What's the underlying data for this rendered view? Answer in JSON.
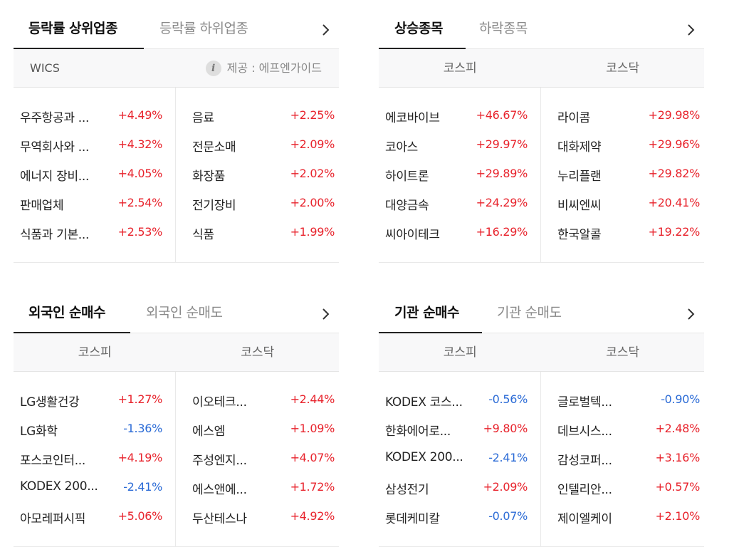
{
  "sector": {
    "tabs": [
      {
        "label": "등락률 상위업종"
      },
      {
        "label": "등락률 하위업종"
      }
    ],
    "source_label": "WICS",
    "provider": "제공 : 에프엔가이드",
    "left": [
      {
        "name": "우주항공과 ...",
        "pct": "+4.49%"
      },
      {
        "name": "무역회사와 ...",
        "pct": "+4.32%"
      },
      {
        "name": "에너지 장비...",
        "pct": "+4.05%"
      },
      {
        "name": "판매업체",
        "pct": "+2.54%"
      },
      {
        "name": "식품과 기본...",
        "pct": "+2.53%"
      }
    ],
    "right": [
      {
        "name": "음료",
        "pct": "+2.25%"
      },
      {
        "name": "전문소매",
        "pct": "+2.09%"
      },
      {
        "name": "화장품",
        "pct": "+2.02%"
      },
      {
        "name": "전기장비",
        "pct": "+2.00%"
      },
      {
        "name": "식품",
        "pct": "+1.99%"
      }
    ]
  },
  "movers": {
    "tabs": [
      {
        "label": "상승종목"
      },
      {
        "label": "하락종목"
      }
    ],
    "columns": [
      "코스피",
      "코스닥"
    ],
    "left": [
      {
        "name": "에코바이브",
        "pct": "+46.67%"
      },
      {
        "name": "코아스",
        "pct": "+29.97%"
      },
      {
        "name": "하이트론",
        "pct": "+29.89%"
      },
      {
        "name": "대양금속",
        "pct": "+24.29%"
      },
      {
        "name": "씨아이테크",
        "pct": "+16.29%"
      }
    ],
    "right": [
      {
        "name": "라이콤",
        "pct": "+29.98%"
      },
      {
        "name": "대화제약",
        "pct": "+29.96%"
      },
      {
        "name": "누리플랜",
        "pct": "+29.82%"
      },
      {
        "name": "비씨엔씨",
        "pct": "+20.41%"
      },
      {
        "name": "한국알콜",
        "pct": "+19.22%"
      }
    ]
  },
  "foreign": {
    "tabs": [
      {
        "label": "외국인 순매수"
      },
      {
        "label": "외국인 순매도"
      }
    ],
    "columns": [
      "코스피",
      "코스닥"
    ],
    "left": [
      {
        "name": "LG생활건강",
        "pct": "+1.27%"
      },
      {
        "name": "LG화학",
        "pct": "-1.36%"
      },
      {
        "name": "포스코인터...",
        "pct": "+4.19%"
      },
      {
        "name": "KODEX 200...",
        "pct": "-2.41%"
      },
      {
        "name": "아모레퍼시픽",
        "pct": "+5.06%"
      }
    ],
    "right": [
      {
        "name": "이오테크...",
        "pct": "+2.44%"
      },
      {
        "name": "에스엠",
        "pct": "+1.09%"
      },
      {
        "name": "주성엔지...",
        "pct": "+4.07%"
      },
      {
        "name": "에스앤에...",
        "pct": "+1.72%"
      },
      {
        "name": "두산테스나",
        "pct": "+4.92%"
      }
    ]
  },
  "institution": {
    "tabs": [
      {
        "label": "기관 순매수"
      },
      {
        "label": "기관 순매도"
      }
    ],
    "columns": [
      "코스피",
      "코스닥"
    ],
    "left": [
      {
        "name": "KODEX 코스...",
        "pct": "-0.56%"
      },
      {
        "name": "한화에어로...",
        "pct": "+9.80%"
      },
      {
        "name": "KODEX 200...",
        "pct": "-2.41%"
      },
      {
        "name": "삼성전기",
        "pct": "+2.09%"
      },
      {
        "name": "롯데케미칼",
        "pct": "-0.07%"
      }
    ],
    "right": [
      {
        "name": "글로벌텍...",
        "pct": "-0.90%"
      },
      {
        "name": "데브시스...",
        "pct": "+2.48%"
      },
      {
        "name": "감성코퍼...",
        "pct": "+3.16%"
      },
      {
        "name": "인텔리안...",
        "pct": "+0.57%"
      },
      {
        "name": "제이엘케이",
        "pct": "+2.10%"
      }
    ]
  },
  "colors": {
    "up": "#e8232c",
    "down": "#2b6bd6"
  },
  "icons": {
    "more": "chevron-right-icon",
    "info": "info-icon"
  }
}
